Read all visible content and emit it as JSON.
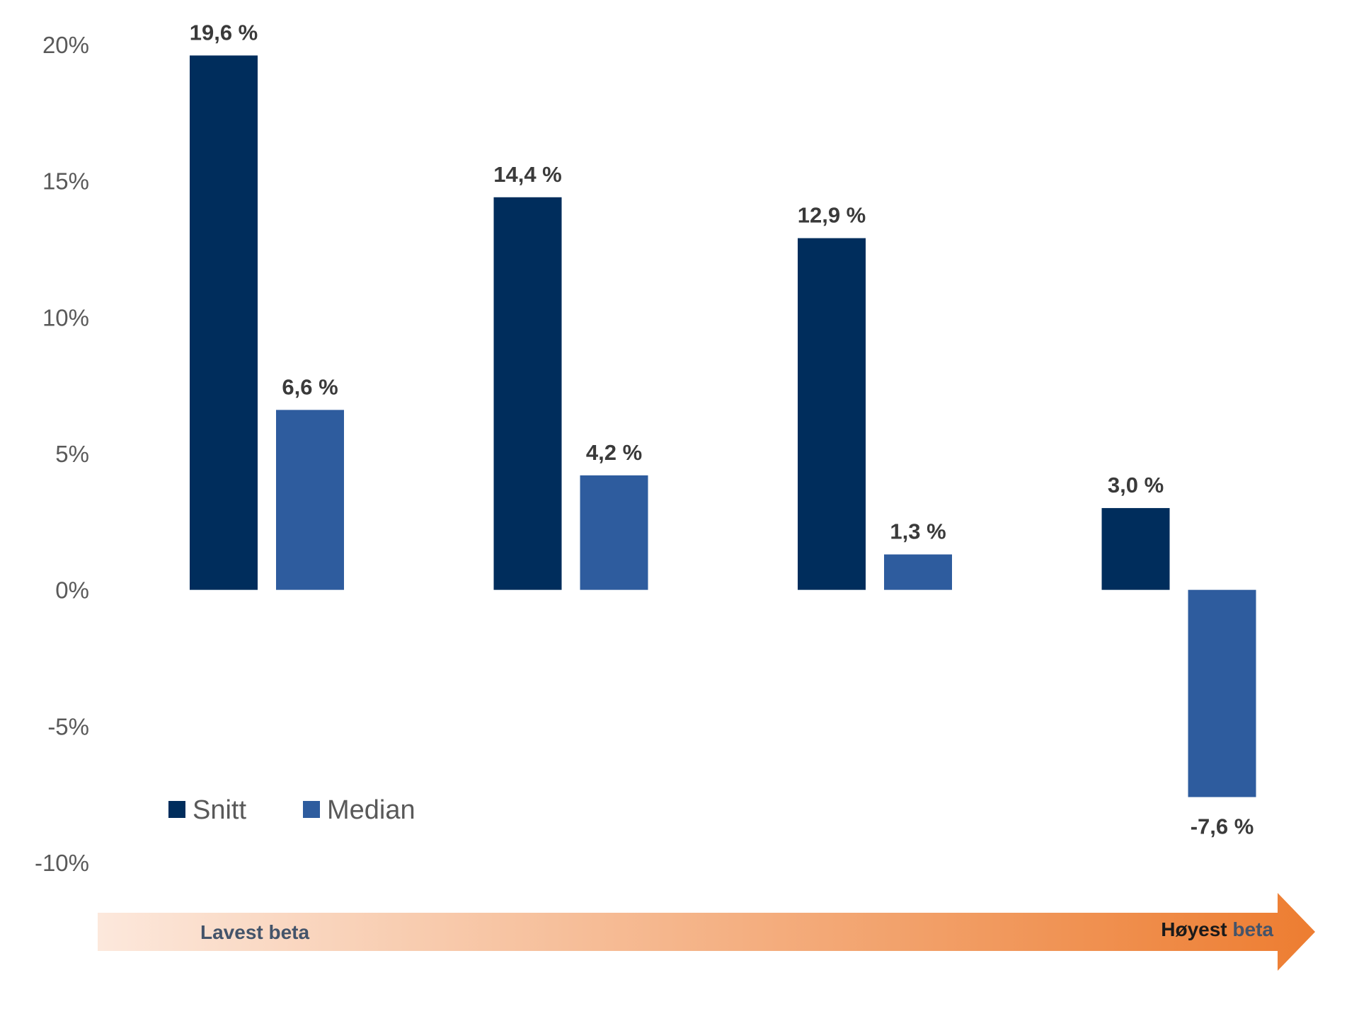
{
  "chart_data": {
    "type": "bar",
    "categories": [
      "",
      "",
      "",
      ""
    ],
    "series": [
      {
        "name": "Snitt",
        "values": [
          19.6,
          14.4,
          12.9,
          3.0
        ],
        "labels": [
          "19,6 %",
          "14,4 %",
          "12,9 %",
          "3,0 %"
        ],
        "color": "#002d5c"
      },
      {
        "name": "Median",
        "values": [
          6.6,
          4.2,
          1.3,
          -7.6
        ],
        "labels": [
          "6,6 %",
          "4,2 %",
          "1,3 %",
          "-7,6 %"
        ],
        "color": "#2e5c9e"
      }
    ],
    "ylim": [
      -10,
      20
    ],
    "yticks": [
      20,
      15,
      10,
      5,
      0,
      -5,
      -10
    ],
    "ytick_labels": [
      "20%",
      "15%",
      "10%",
      "5%",
      "0%",
      "-5%",
      "-10%"
    ],
    "grid": false,
    "legend_position": "bottom-left",
    "title": "",
    "xlabel": "",
    "ylabel": ""
  },
  "arrow": {
    "start_label": "Lavest beta",
    "end_label_prefix": "Høyest",
    "end_label_suffix": "beta",
    "gradient_start": "#fce8dc",
    "gradient_end": "#ed7d31",
    "start_label_color": "#44546a",
    "end_prefix_color": "#1a1a1a",
    "end_suffix_color": "#44546a"
  }
}
